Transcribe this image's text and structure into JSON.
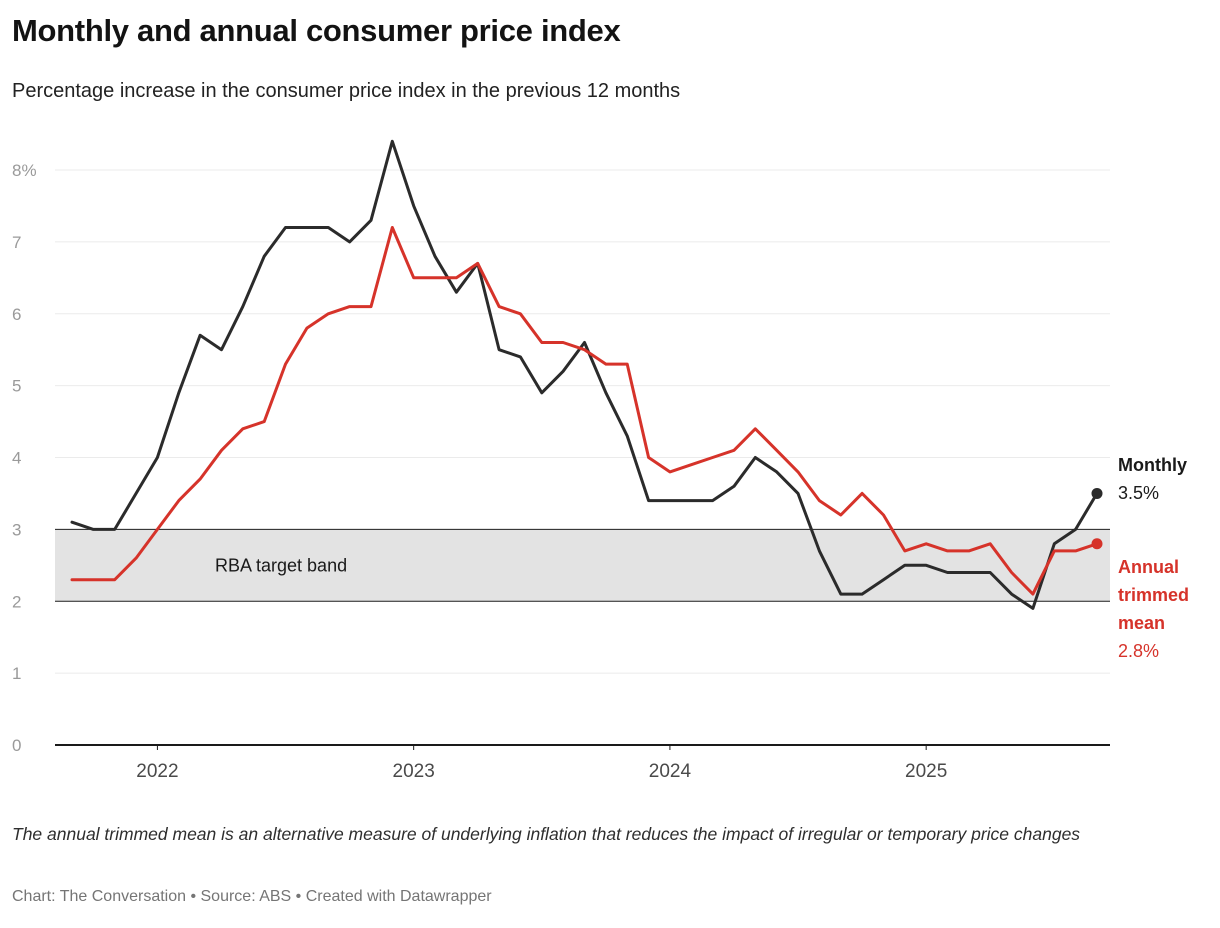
{
  "chart_data": {
    "type": "line",
    "title": "Monthly and annual consumer price index",
    "subtitle": "Percentage increase in the consumer price index in the previous 12 months",
    "x_months": [
      "2021-09",
      "2021-10",
      "2021-11",
      "2021-12",
      "2022-01",
      "2022-02",
      "2022-03",
      "2022-04",
      "2022-05",
      "2022-06",
      "2022-07",
      "2022-08",
      "2022-09",
      "2022-10",
      "2022-11",
      "2022-12",
      "2023-01",
      "2023-02",
      "2023-03",
      "2023-04",
      "2023-05",
      "2023-06",
      "2023-07",
      "2023-08",
      "2023-09",
      "2023-10",
      "2023-11",
      "2023-12",
      "2024-01",
      "2024-02",
      "2024-03",
      "2024-04",
      "2024-05",
      "2024-06",
      "2024-07",
      "2024-08",
      "2024-09",
      "2024-10",
      "2024-11",
      "2024-12",
      "2025-01",
      "2025-02",
      "2025-03",
      "2025-04",
      "2025-05",
      "2025-06",
      "2025-07",
      "2025-08",
      "2025-09"
    ],
    "x_ticks": [
      {
        "label": "2022",
        "month_index": 4
      },
      {
        "label": "2023",
        "month_index": 16
      },
      {
        "label": "2024",
        "month_index": 28
      },
      {
        "label": "2025",
        "month_index": 40
      }
    ],
    "y_axis": {
      "min": 0,
      "max": 8,
      "ticks": [
        {
          "v": 0,
          "label": "0"
        },
        {
          "v": 1,
          "label": "1"
        },
        {
          "v": 2,
          "label": "2"
        },
        {
          "v": 3,
          "label": "3"
        },
        {
          "v": 4,
          "label": "4"
        },
        {
          "v": 5,
          "label": "5"
        },
        {
          "v": 6,
          "label": "6"
        },
        {
          "v": 7,
          "label": "7"
        },
        {
          "v": 8,
          "label": "8%"
        }
      ]
    },
    "band": {
      "label": "RBA target band",
      "from": 2,
      "to": 3,
      "fill": "#e3e3e3",
      "border_color": "#1f1f1f"
    },
    "grid": true,
    "legend_position": "right-end-labels",
    "series": [
      {
        "id": "monthly",
        "name": "Monthly",
        "color": "#2b2b2b",
        "end_label": "Monthly",
        "end_value": "3.5%",
        "values": [
          3.1,
          3.0,
          3.0,
          3.5,
          4.0,
          4.9,
          5.7,
          5.5,
          6.1,
          6.8,
          7.2,
          7.2,
          7.2,
          7.0,
          7.3,
          8.4,
          7.5,
          6.8,
          6.3,
          6.7,
          5.5,
          5.4,
          4.9,
          5.2,
          5.6,
          4.9,
          4.3,
          3.4,
          3.4,
          3.4,
          3.4,
          3.6,
          4.0,
          3.8,
          3.5,
          2.7,
          2.1,
          2.1,
          2.3,
          2.5,
          2.5,
          2.4,
          2.4,
          2.4,
          2.1,
          1.9,
          2.8,
          3.0,
          3.5
        ]
      },
      {
        "id": "annual-trimmed-mean",
        "name": "Annual trimmed mean",
        "color": "#d6332a",
        "end_label": "Annual trimmed mean",
        "end_value": "2.8%",
        "values": [
          2.3,
          2.3,
          2.3,
          2.6,
          3.0,
          3.4,
          3.7,
          4.1,
          4.4,
          4.5,
          5.3,
          5.8,
          6.0,
          6.1,
          6.1,
          7.2,
          6.5,
          6.5,
          6.5,
          6.7,
          6.1,
          6.0,
          5.6,
          5.6,
          5.5,
          5.3,
          5.3,
          4.0,
          3.8,
          3.9,
          4.0,
          4.1,
          4.4,
          4.1,
          3.8,
          3.4,
          3.2,
          3.5,
          3.2,
          2.7,
          2.8,
          2.7,
          2.7,
          2.8,
          2.4,
          2.1,
          2.7,
          2.7,
          2.8
        ]
      }
    ],
    "style": {
      "gridline_color": "#ebebeb",
      "axis_line_color": "#1a1a1a",
      "y_label_color": "#9a9a9a",
      "x_label_color": "#4a4a4a"
    }
  },
  "notes": {
    "description": "The annual trimmed mean is an alternative measure of underlying inflation that reduces the impact of irregular or temporary price changes",
    "byline": "Chart: The Conversation • Source: ABS • Created with Datawrapper"
  }
}
